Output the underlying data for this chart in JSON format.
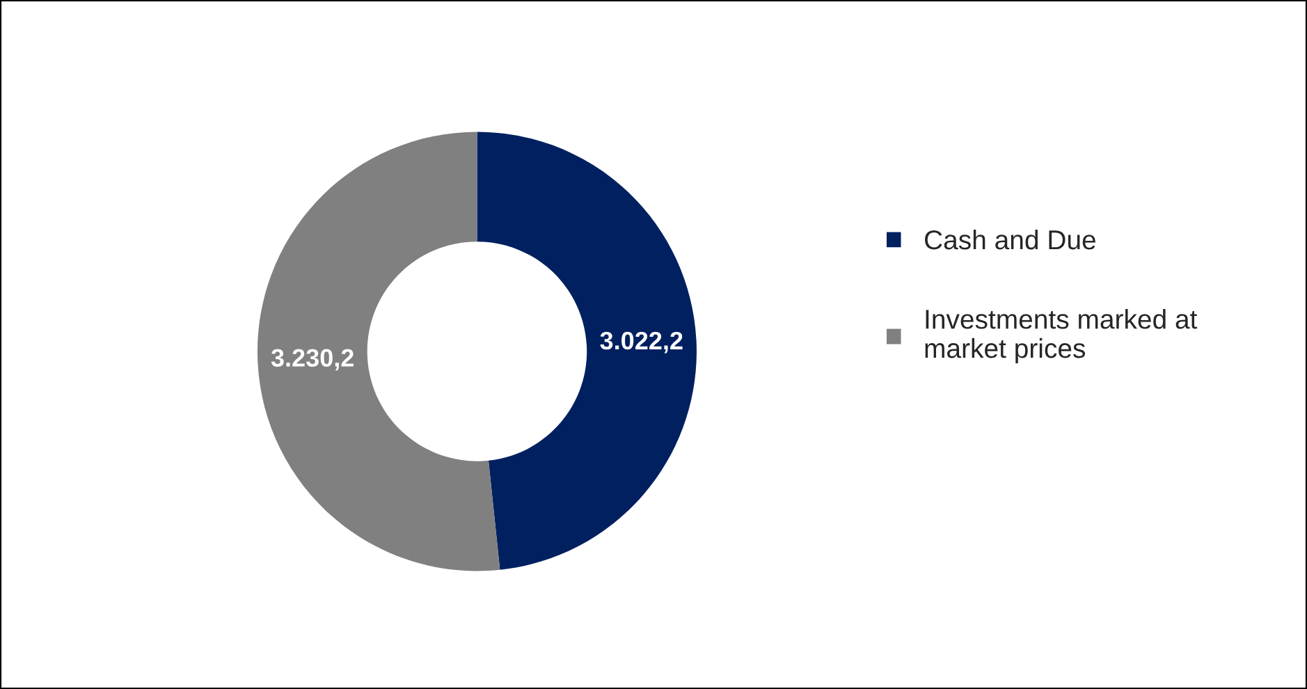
{
  "chart_data": {
    "type": "donut",
    "categories": [
      "Cash and Due",
      "Investments marked at market prices"
    ],
    "values": [
      3022.2,
      3230.2
    ],
    "colors": [
      "#002060",
      "#808080"
    ],
    "value_labels": [
      "3.022,2",
      "3.230,2"
    ],
    "legend": "right"
  }
}
